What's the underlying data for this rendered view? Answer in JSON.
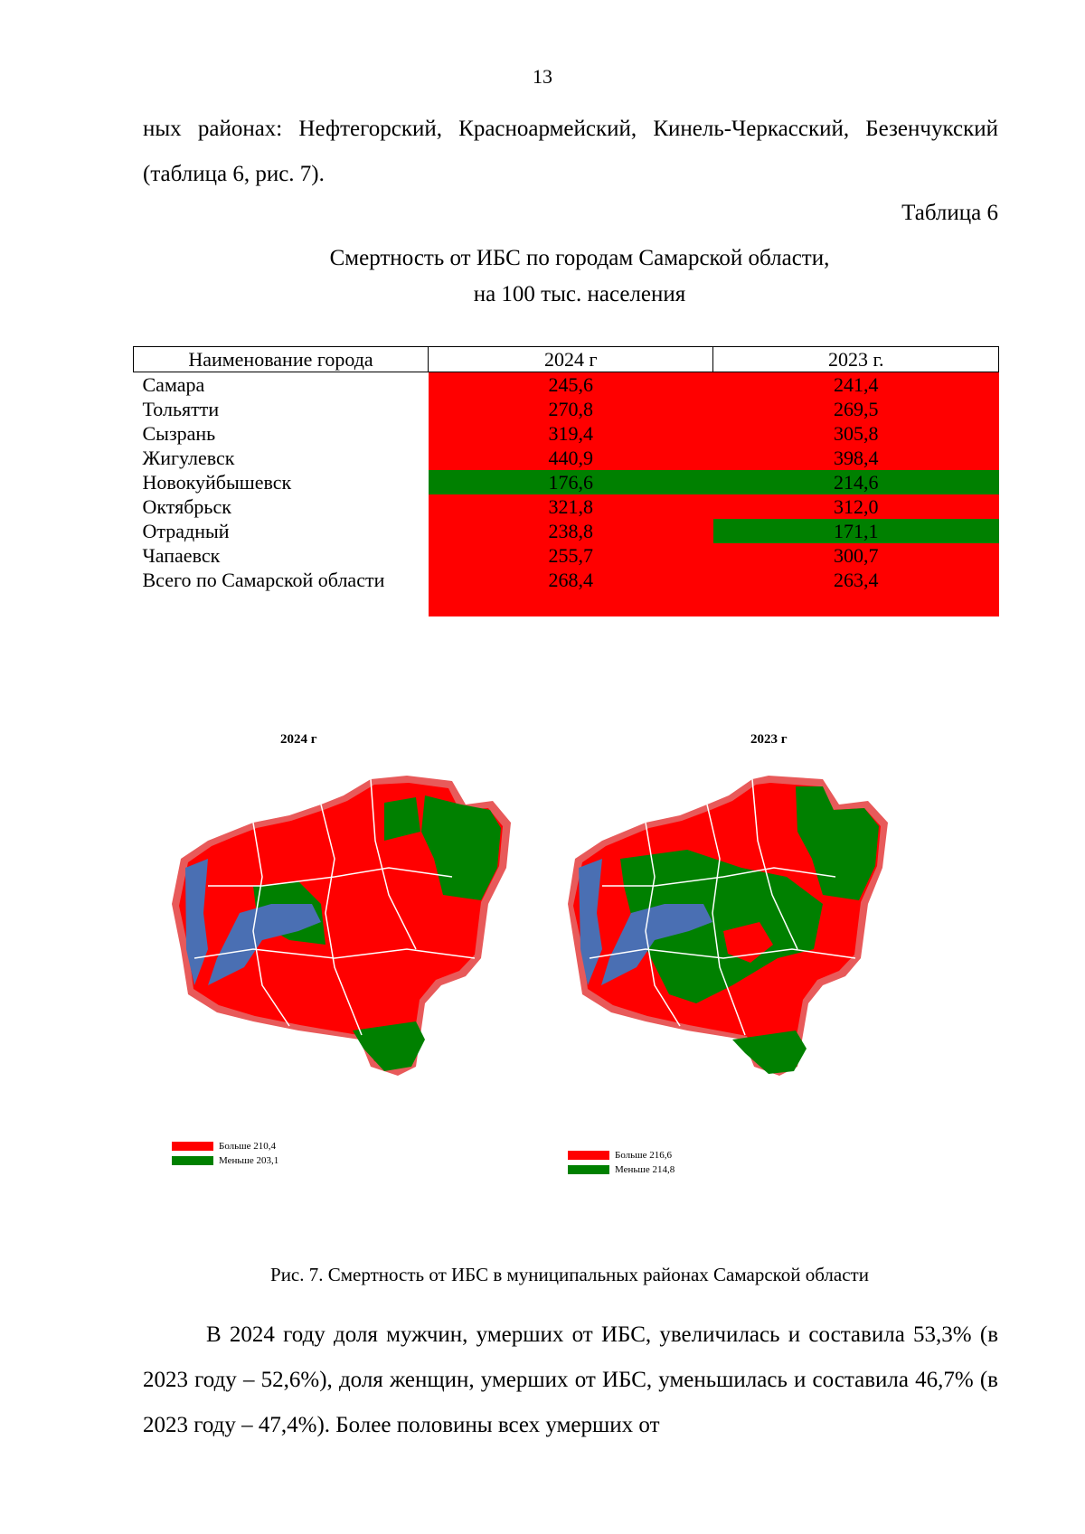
{
  "page_number": "13",
  "intro_text": "ных районах: Нефтегорский, Красноармейский, Кинель-Черкасский, Безенчукский (таблица 6, рис. 7).",
  "table": {
    "label": "Таблица 6",
    "title_line1": "Смертность от ИБС по городам Самарской области,",
    "title_line2": "на 100 тыс. населения",
    "headers": [
      "Наименование города",
      "2024 г",
      "2023 г."
    ],
    "rows": [
      {
        "name": "Самара",
        "v2024": "245,6",
        "v2023": "241,4",
        "c2024": "red",
        "c2023": "red"
      },
      {
        "name": "Тольятти",
        "v2024": "270,8",
        "v2023": "269,5",
        "c2024": "red",
        "c2023": "red"
      },
      {
        "name": "Сызрань",
        "v2024": "319,4",
        "v2023": "305,8",
        "c2024": "red",
        "c2023": "red"
      },
      {
        "name": "Жигулевск",
        "v2024": "440,9",
        "v2023": "398,4",
        "c2024": "red",
        "c2023": "red"
      },
      {
        "name": "Новокуйбышевск",
        "v2024": "176,6",
        "v2023": "214,6",
        "c2024": "green",
        "c2023": "green"
      },
      {
        "name": "Октябрьск",
        "v2024": "321,8",
        "v2023": "312,0",
        "c2024": "red",
        "c2023": "red"
      },
      {
        "name": "Отрадный",
        "v2024": "238,8",
        "v2023": "171,1",
        "c2024": "red",
        "c2023": "green"
      },
      {
        "name": "Чапаевск",
        "v2024": "255,7",
        "v2023": "300,7",
        "c2024": "red",
        "c2023": "red"
      },
      {
        "name": "Всего по Самарской области",
        "v2024": "268,4",
        "v2023": "263,4",
        "c2024": "red",
        "c2023": "red"
      }
    ]
  },
  "maps": {
    "left_title": "2024 г",
    "right_title": "2023 г",
    "left_legend": {
      "high": "Больше 210,4",
      "low": "Меньше 203,1"
    },
    "right_legend": {
      "high": "Больше 216,6",
      "low": "Меньше 214,8"
    }
  },
  "figure_caption": "Рис. 7. Смертность от ИБС в муниципальных районах Самарской области",
  "closing_text": "В 2024 году доля мужчин, умерших от ИБС, увеличилась и составила 53,3% (в 2023 году – 52,6%), доля женщин, умерших от ИБС, уменьшилась и составила 46,7% (в 2023 году – 47,4%). Более половины всех умерших от",
  "colors": {
    "high": "#ff0000",
    "low": "#008000",
    "border": "#e85a5a",
    "water": "#4a6fb3"
  }
}
